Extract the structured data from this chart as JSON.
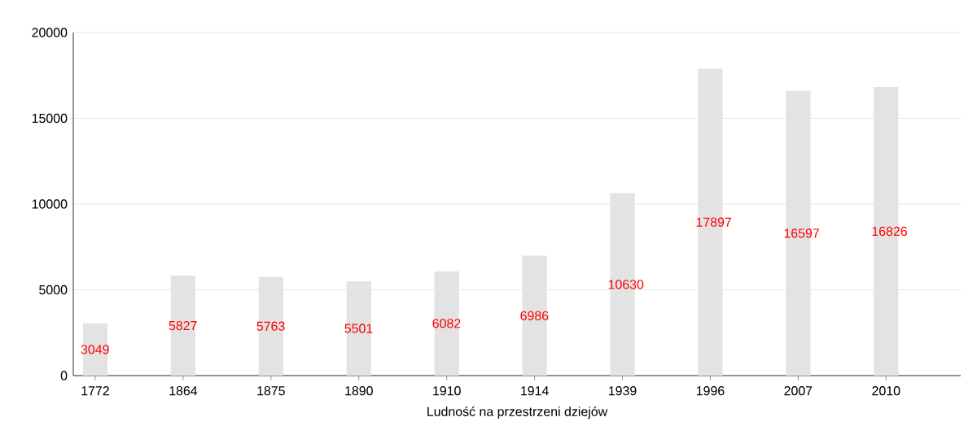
{
  "chart_data": {
    "type": "bar",
    "xlabel": "Ludność na przestrzeni dziejów",
    "categories": [
      "1772",
      "1864",
      "1875",
      "1890",
      "1910",
      "1914",
      "1939",
      "1996",
      "2007",
      "2010"
    ],
    "values": [
      3049,
      5827,
      5763,
      5501,
      6082,
      6986,
      10630,
      17897,
      16597,
      16826
    ],
    "color": "#e3e3e3",
    "ylim": [
      0,
      20000
    ],
    "yticks": [
      0,
      5000,
      10000,
      15000,
      20000
    ],
    "grid": "y",
    "data_labels": true
  }
}
